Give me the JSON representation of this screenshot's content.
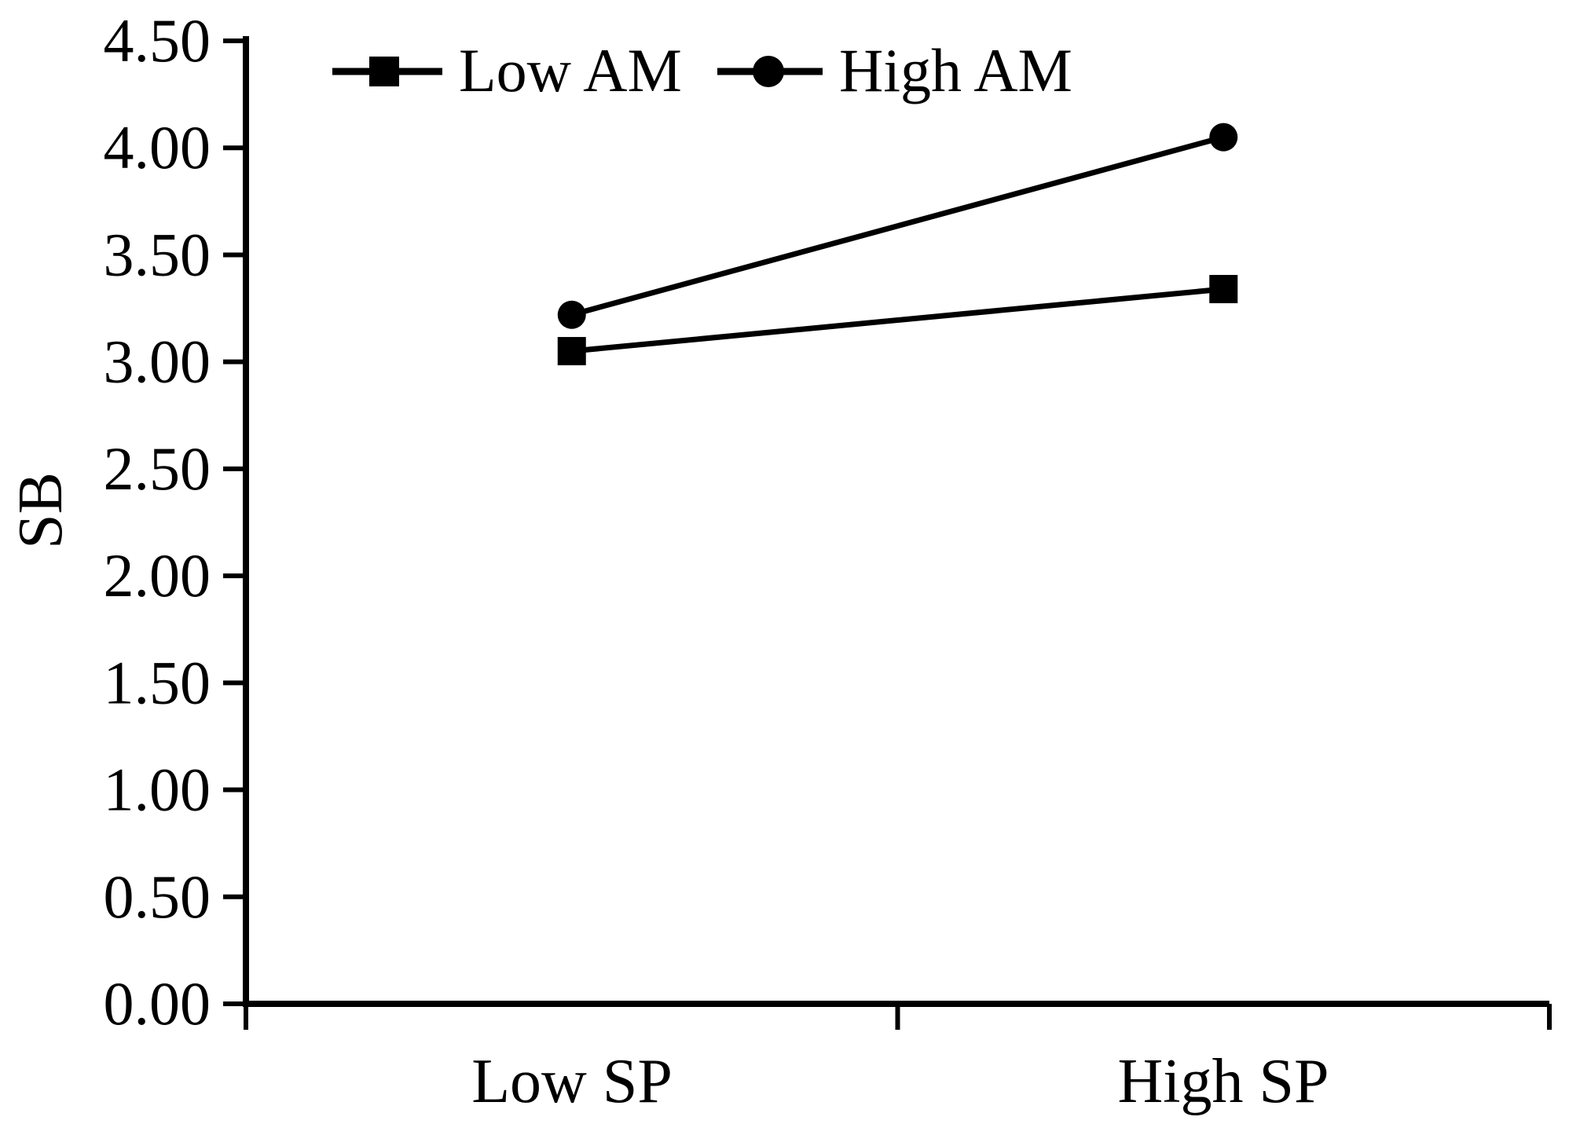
{
  "figure": {
    "background": "#ffffff",
    "foreground": "#000000"
  },
  "chart_data": {
    "type": "line",
    "title": "",
    "xlabel": "",
    "ylabel": "SB",
    "categories": [
      "Low SP",
      "High SP"
    ],
    "series": [
      {
        "name": "Low AM",
        "marker": "square",
        "color": "#000000",
        "values": [
          3.05,
          3.34
        ]
      },
      {
        "name": "High AM",
        "marker": "circle",
        "color": "#000000",
        "values": [
          3.22,
          4.05
        ]
      }
    ],
    "ylim": [
      0,
      4.5
    ],
    "ytick_step": 0.5,
    "ytick_labels": [
      "0.00",
      "0.50",
      "1.00",
      "1.50",
      "2.00",
      "2.50",
      "3.00",
      "3.50",
      "4.00",
      "4.50"
    ],
    "x_boundary_ticks": 3,
    "grid": false,
    "legend_position": "top-inside",
    "marker_fill": "#000000",
    "line_color": "#000000"
  }
}
